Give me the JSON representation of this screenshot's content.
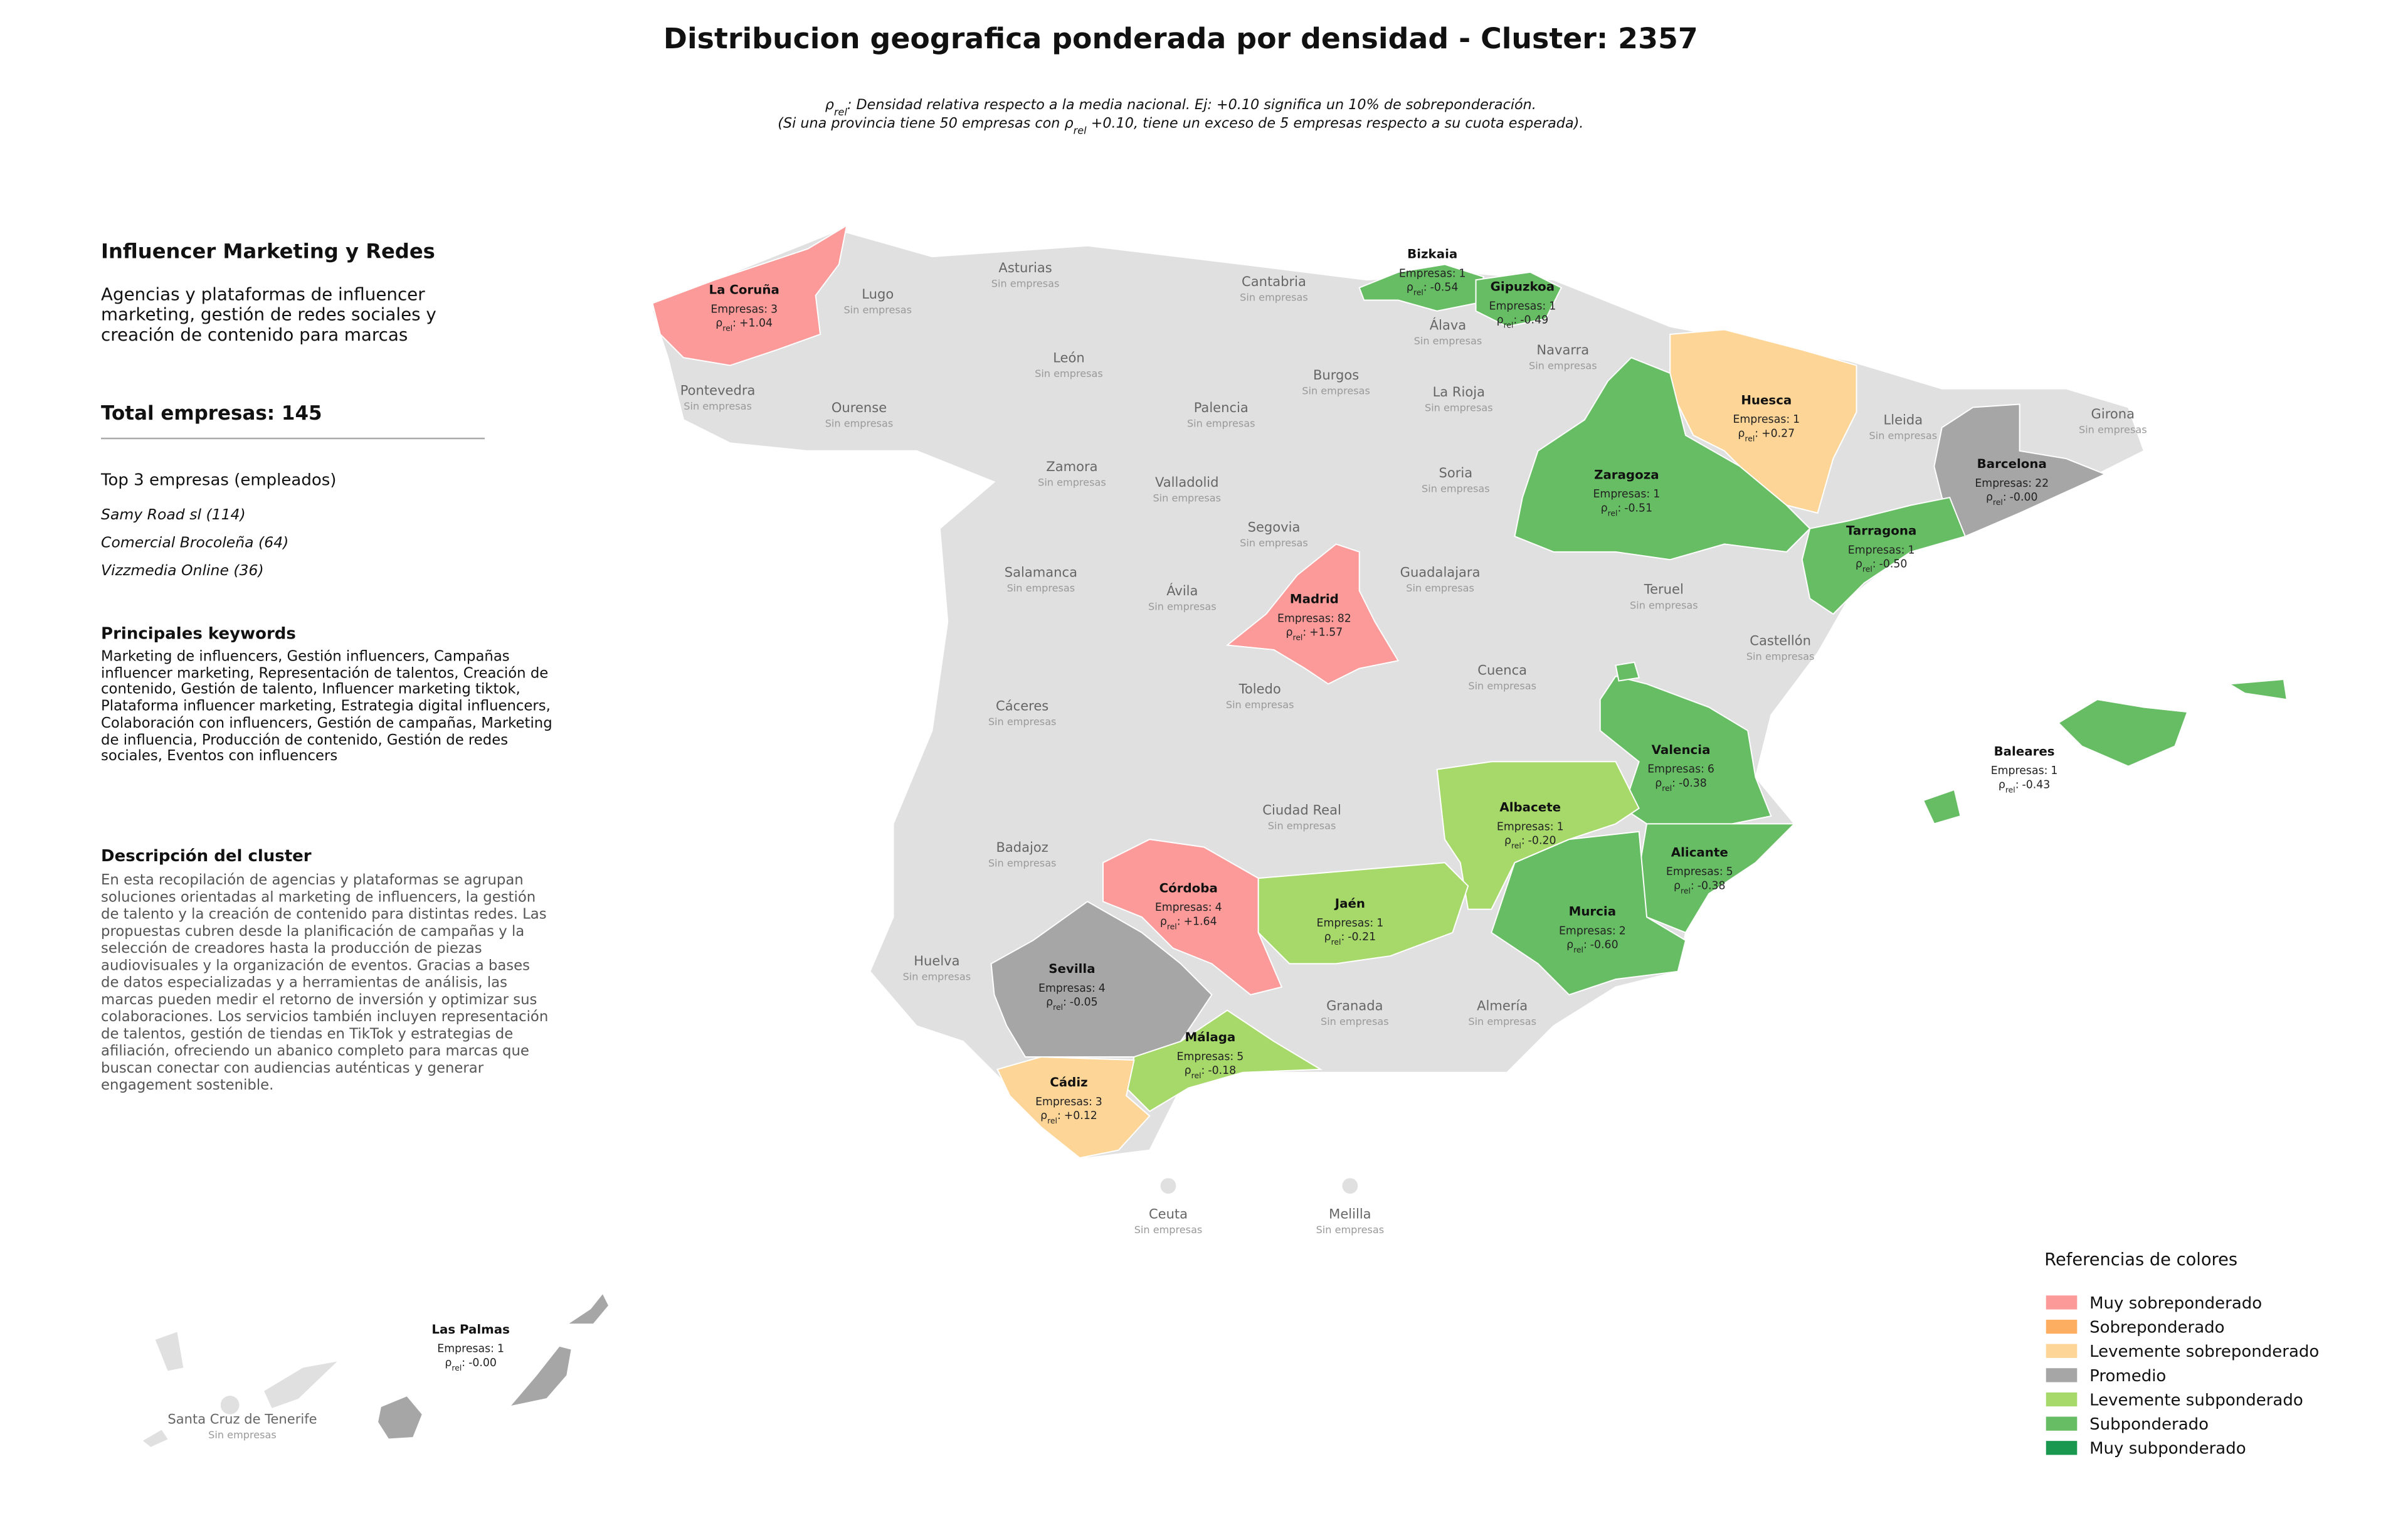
{
  "title": "Distribucion geografica ponderada por densidad - Cluster: 2357",
  "subtitle": {
    "line1": {
      "symbol": "ρ",
      "sub": "rel",
      "text": ": Densidad relativa respecto a la media nacional. Ej: +0.10 significa un 10% de sobreponderación."
    },
    "line2": {
      "before": "(Si una provincia tiene 50 empresas con ",
      "symbol": "ρ",
      "sub": "rel",
      "after": " +0.10, tiene un exceso de 5 empresas respecto a su cuota esperada)."
    }
  },
  "panel": {
    "heading": "Influencer Marketing y Redes",
    "summary": "Agencias y plataformas de influencer marketing, gestión de redes sociales y creación de contenido para marcas",
    "total": "Total empresas: 145",
    "top_title": "Top 3 empresas (empleados)",
    "top": [
      "Samy Road sl (114)",
      "Comercial Brocoleña (64)",
      "Vizzmedia Online (36)"
    ],
    "keywords_title": "Principales keywords",
    "keywords": "Marketing de influencers, Gestión influencers, Campañas influencer marketing, Representación de talentos, Creación de contenido, Gestión de talento, Influencer marketing tiktok, Plataforma influencer marketing, Estrategia digital influencers, Colaboración con influencers, Gestión de campañas, Marketing de influencia, Producción de contenido, Gestión de redes sociales, Eventos con influencers",
    "description_title": "Descripción del cluster",
    "description": "En esta recopilación de agencias y plataformas se agrupan soluciones orientadas al marketing de influencers, la gestión de talento y la creación de contenido para distintas redes. Las propuestas cubren desde la planificación de campañas y la selección de creadores hasta la producción de piezas audiovisuales y la organización de eventos. Gracias a bases de datos especializadas y a herramientas de análisis, las marcas pueden medir el retorno de inversión y optimizar sus colaboraciones. Los servicios también incluyen representación de talentos, gestión de tiendas en TikTok y estrategias de afiliación, ofreciendo un abanico completo para marcas que buscan conectar con audiencias auténticas y generar engagement sostenible."
  },
  "map": {
    "labels": {
      "companies": "Empresas:",
      "rho": "ρ",
      "rho_sub": "rel",
      "rho_sep": ":",
      "none": "Sin empresas"
    },
    "provinces": [
      {
        "name": "La Coruña",
        "empresas": 3,
        "rho": "+1.04",
        "color": "#fb9a99"
      },
      {
        "name": "Bizkaia",
        "empresas": 1,
        "rho": "-0.54",
        "color": "#66bd63"
      },
      {
        "name": "Gipuzkoa",
        "empresas": 1,
        "rho": "-0.49",
        "color": "#66bd63"
      },
      {
        "name": "Huesca",
        "empresas": 1,
        "rho": "+0.27",
        "color": "#fdd597"
      },
      {
        "name": "Zaragoza",
        "empresas": 1,
        "rho": "-0.51",
        "color": "#66bd63"
      },
      {
        "name": "Barcelona",
        "empresas": 22,
        "rho": "-0.00",
        "color": "#a6a6a6"
      },
      {
        "name": "Tarragona",
        "empresas": 1,
        "rho": "-0.50",
        "color": "#66bd63"
      },
      {
        "name": "Madrid",
        "empresas": 82,
        "rho": "+1.57",
        "color": "#fb9a99"
      },
      {
        "name": "Valencia",
        "empresas": 6,
        "rho": "-0.38",
        "color": "#66bd63"
      },
      {
        "name": "Albacete",
        "empresas": 1,
        "rho": "-0.20",
        "color": "#a6d96a"
      },
      {
        "name": "Alicante",
        "empresas": 5,
        "rho": "-0.38",
        "color": "#66bd63"
      },
      {
        "name": "Murcia",
        "empresas": 2,
        "rho": "-0.60",
        "color": "#66bd63"
      },
      {
        "name": "Córdoba",
        "empresas": 4,
        "rho": "+1.64",
        "color": "#fb9a99"
      },
      {
        "name": "Jaén",
        "empresas": 1,
        "rho": "-0.21",
        "color": "#a6d96a"
      },
      {
        "name": "Sevilla",
        "empresas": 4,
        "rho": "-0.05",
        "color": "#a6a6a6"
      },
      {
        "name": "Málaga",
        "empresas": 5,
        "rho": "-0.18",
        "color": "#a6d96a"
      },
      {
        "name": "Cádiz",
        "empresas": 3,
        "rho": "+0.12",
        "color": "#fdd597"
      },
      {
        "name": "Baleares",
        "empresas": 1,
        "rho": "-0.43",
        "color": "#66bd63"
      },
      {
        "name": "Las Palmas",
        "empresas": 1,
        "rho": "-0.00",
        "color": "#a6a6a6"
      }
    ],
    "empty": [
      "Asturias",
      "Lugo",
      "Cantabria",
      "Álava",
      "Navarra",
      "León",
      "Pontevedra",
      "Ourense",
      "Burgos",
      "La Rioja",
      "Palencia",
      "Lleida",
      "Girona",
      "Zamora",
      "Soria",
      "Valladolid",
      "Segovia",
      "Salamanca",
      "Guadalajara",
      "Teruel",
      "Ávila",
      "Castellón",
      "Cuenca",
      "Toledo",
      "Cáceres",
      "Ciudad Real",
      "Badajoz",
      "Huelva",
      "Granada",
      "Almería",
      "Ceuta",
      "Melilla",
      "Santa Cruz de Tenerife"
    ],
    "empty_color": "#e0e0e0"
  },
  "legend": {
    "title": "Referencias de colores",
    "items": [
      {
        "name": "Muy sobreponderado",
        "color": "#fb9a99"
      },
      {
        "name": "Sobreponderado",
        "color": "#fdae61"
      },
      {
        "name": "Levemente sobreponderado",
        "color": "#fdd597"
      },
      {
        "name": "Promedio",
        "color": "#a6a6a6"
      },
      {
        "name": "Levemente subponderado",
        "color": "#a6d96a"
      },
      {
        "name": "Subponderado",
        "color": "#66bd63"
      },
      {
        "name": "Muy subponderado",
        "color": "#1a9850"
      }
    ]
  }
}
